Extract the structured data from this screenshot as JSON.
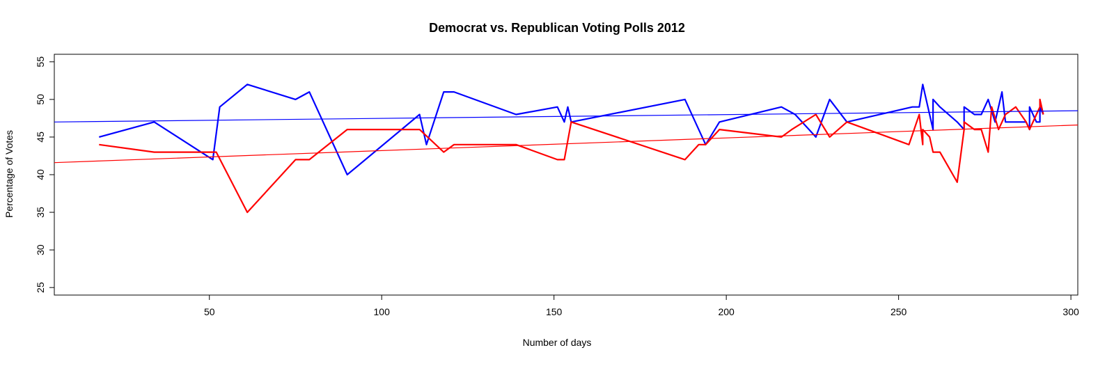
{
  "chart_data": {
    "type": "line",
    "title": "Democrat vs. Republican Voting Polls 2012",
    "xlabel": "Number of days",
    "ylabel": "Percentage of Votes",
    "xlim": [
      5,
      302
    ],
    "ylim": [
      24,
      56
    ],
    "x_ticks": [
      50,
      100,
      150,
      200,
      250,
      300
    ],
    "y_ticks": [
      25,
      30,
      35,
      40,
      45,
      50,
      55
    ],
    "grid": false,
    "legend": "none",
    "series": [
      {
        "color": "#0000ff",
        "kind": "line",
        "points": [
          [
            18,
            45
          ],
          [
            34,
            47
          ],
          [
            51,
            42
          ],
          [
            53,
            49
          ],
          [
            61,
            52
          ],
          [
            75,
            50
          ],
          [
            79,
            51
          ],
          [
            90,
            40
          ],
          [
            111,
            48
          ],
          [
            113,
            44
          ],
          [
            118,
            51
          ],
          [
            121,
            51
          ],
          [
            139,
            48
          ],
          [
            151,
            49
          ],
          [
            153,
            47
          ],
          [
            154,
            49
          ],
          [
            155,
            47
          ],
          [
            188,
            50
          ],
          [
            194,
            44
          ],
          [
            198,
            47
          ],
          [
            216,
            49
          ],
          [
            220,
            48
          ],
          [
            226,
            45
          ],
          [
            230,
            50
          ],
          [
            235,
            47
          ],
          [
            254,
            49
          ],
          [
            256,
            49
          ],
          [
            257,
            52
          ],
          [
            260,
            46
          ],
          [
            260,
            50
          ],
          [
            262,
            49
          ],
          [
            267,
            47
          ],
          [
            269,
            46
          ],
          [
            269,
            49
          ],
          [
            272,
            48
          ],
          [
            274,
            48
          ],
          [
            276,
            50
          ],
          [
            278,
            47
          ],
          [
            280,
            51
          ],
          [
            281,
            47
          ],
          [
            284,
            47
          ],
          [
            287,
            47
          ],
          [
            288,
            46
          ],
          [
            288,
            49
          ],
          [
            290,
            47
          ],
          [
            291,
            47
          ],
          [
            291,
            49
          ],
          [
            292,
            48
          ]
        ]
      },
      {
        "color": "#ff0000",
        "kind": "line",
        "points": [
          [
            18,
            44
          ],
          [
            34,
            43
          ],
          [
            52,
            43
          ],
          [
            61,
            35
          ],
          [
            75,
            42
          ],
          [
            79,
            42
          ],
          [
            90,
            46
          ],
          [
            111,
            46
          ],
          [
            118,
            43
          ],
          [
            121,
            44
          ],
          [
            139,
            44
          ],
          [
            151,
            42
          ],
          [
            153,
            42
          ],
          [
            155,
            47
          ],
          [
            188,
            42
          ],
          [
            192,
            44
          ],
          [
            194,
            44
          ],
          [
            198,
            46
          ],
          [
            216,
            45
          ],
          [
            219,
            46
          ],
          [
            226,
            48
          ],
          [
            230,
            45
          ],
          [
            235,
            47
          ],
          [
            253,
            44
          ],
          [
            256,
            48
          ],
          [
            257,
            44
          ],
          [
            257,
            46
          ],
          [
            259,
            45
          ],
          [
            260,
            43
          ],
          [
            262,
            43
          ],
          [
            267,
            39
          ],
          [
            269,
            46
          ],
          [
            269,
            47
          ],
          [
            272,
            46
          ],
          [
            274,
            46
          ],
          [
            276,
            43
          ],
          [
            277,
            49
          ],
          [
            279,
            46
          ],
          [
            281,
            48
          ],
          [
            284,
            49
          ],
          [
            287,
            47
          ],
          [
            288,
            46
          ],
          [
            290,
            48
          ],
          [
            291,
            49
          ],
          [
            291,
            50
          ],
          [
            292,
            48
          ]
        ]
      },
      {
        "color": "#0000ff",
        "kind": "trend",
        "points": [
          [
            5,
            47.0
          ],
          [
            302,
            48.5
          ]
        ]
      },
      {
        "color": "#ff0000",
        "kind": "trend",
        "points": [
          [
            5,
            41.6
          ],
          [
            302,
            46.6
          ]
        ]
      }
    ]
  }
}
